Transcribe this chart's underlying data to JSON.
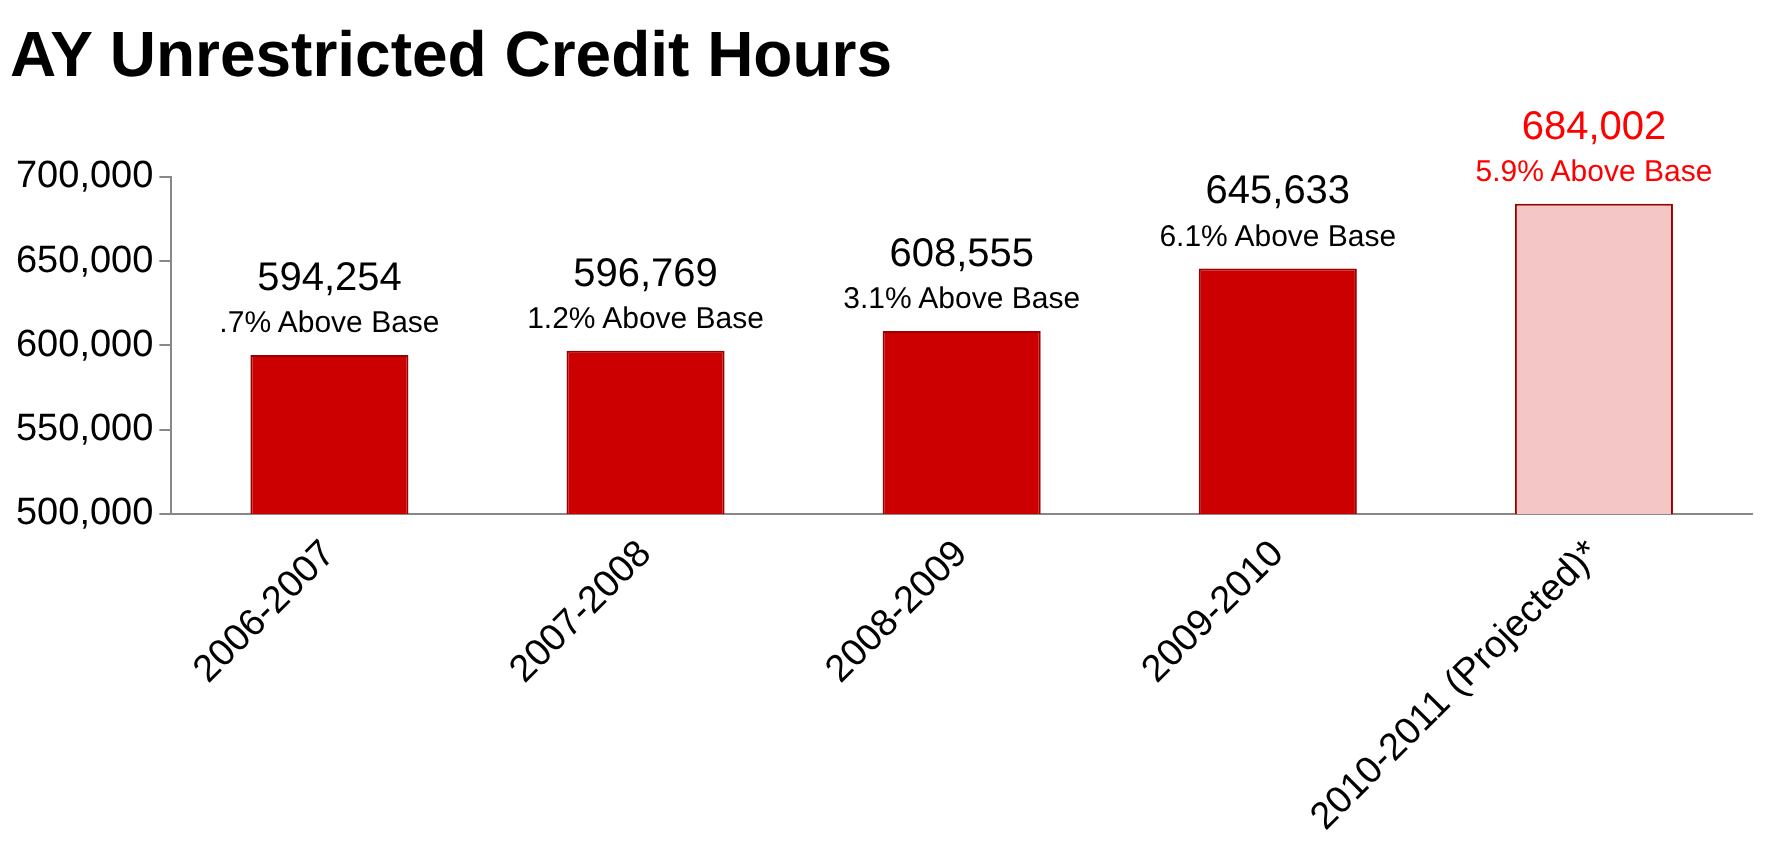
{
  "chart_data": {
    "type": "bar",
    "title": "AY Unrestricted Credit Hours",
    "categories": [
      "2006-2007",
      "2007-2008",
      "2008-2009",
      "2009-2010",
      "2010-2011 (Projected)*"
    ],
    "values": [
      594254,
      596769,
      608555,
      645633,
      684002
    ],
    "colors": [
      "#cc0000",
      "#cc0000",
      "#cc0000",
      "#cc0000",
      "#f4c6c6"
    ],
    "value_labels": [
      "594,254",
      "596,769",
      "608,555",
      "645,633",
      "684,002"
    ],
    "annotations": [
      {
        "text": ".7% Above Base",
        "x": "2006-2007",
        "y": 594254
      },
      {
        "text": "1.2% Above Base",
        "x": "2007-2008",
        "y": 596769
      },
      {
        "text": "3.1% Above Base",
        "x": "2008-2009",
        "y": 608555
      },
      {
        "text": "6.1% Above Base",
        "x": "2009-2010",
        "y": 645633
      },
      {
        "text": "5.9% Above Base",
        "x": "2010-2011 (Projected)*",
        "y": 684002
      }
    ],
    "ylim": [
      500000,
      700000
    ],
    "yticks": [
      {
        "value": 500000,
        "label": "500,000"
      },
      {
        "value": 550000,
        "label": "550,000"
      },
      {
        "value": 600000,
        "label": "600,000"
      },
      {
        "value": 650000,
        "label": "650,000"
      },
      {
        "value": 700000,
        "label": "700,000"
      }
    ],
    "grid": false,
    "legend": false
  }
}
